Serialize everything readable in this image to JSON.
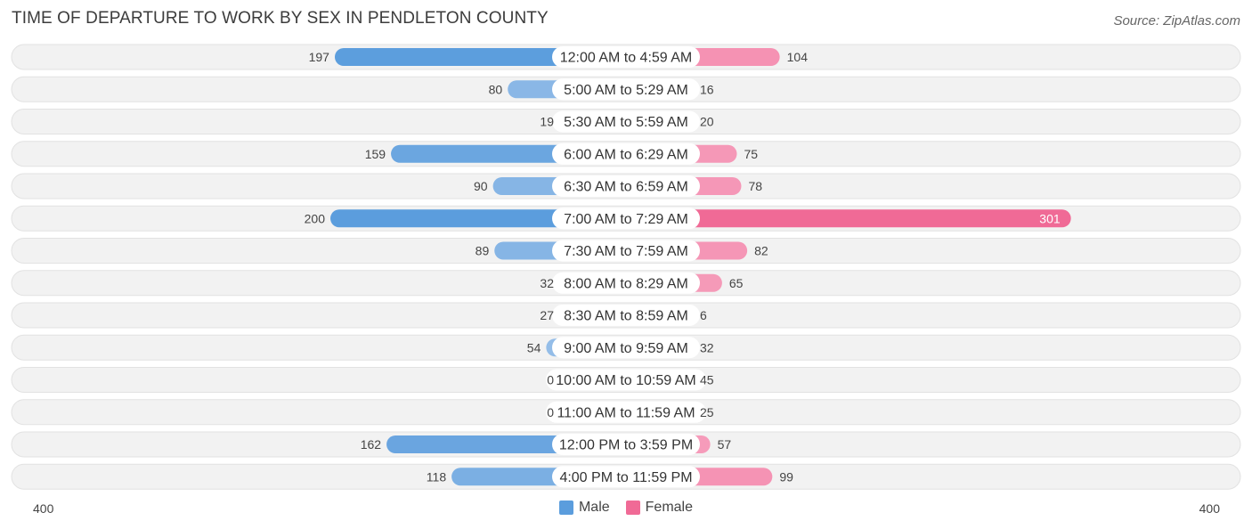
{
  "title": "TIME OF DEPARTURE TO WORK BY SEX IN PENDLETON COUNTY",
  "source": "Source: ZipAtlas.com",
  "colors": {
    "male_dark": "#5b9ddd",
    "male_light": "#a9c9ec",
    "female_dark": "#f06a96",
    "female_light": "#f7a7c2",
    "row_bg": "#f2f2f2"
  },
  "legend": {
    "male": "Male",
    "female": "Female"
  },
  "chart_data": {
    "type": "bar",
    "orientation": "horizontal-diverging",
    "title": "TIME OF DEPARTURE TO WORK BY SEX IN PENDLETON COUNTY",
    "categories": [
      "12:00 AM to 4:59 AM",
      "5:00 AM to 5:29 AM",
      "5:30 AM to 5:59 AM",
      "6:00 AM to 6:29 AM",
      "6:30 AM to 6:59 AM",
      "7:00 AM to 7:29 AM",
      "7:30 AM to 7:59 AM",
      "8:00 AM to 8:29 AM",
      "8:30 AM to 8:59 AM",
      "9:00 AM to 9:59 AM",
      "10:00 AM to 10:59 AM",
      "11:00 AM to 11:59 AM",
      "12:00 PM to 3:59 PM",
      "4:00 PM to 11:59 PM"
    ],
    "series": [
      {
        "name": "Male",
        "values": [
          197,
          80,
          19,
          159,
          90,
          200,
          89,
          32,
          27,
          54,
          0,
          0,
          162,
          118
        ]
      },
      {
        "name": "Female",
        "values": [
          104,
          16,
          20,
          75,
          78,
          301,
          82,
          65,
          6,
          32,
          45,
          25,
          57,
          99
        ]
      }
    ],
    "axis_min_label": "400",
    "axis_max_label": "400",
    "xlim": [
      -400,
      400
    ],
    "legend_position": "bottom-center"
  }
}
